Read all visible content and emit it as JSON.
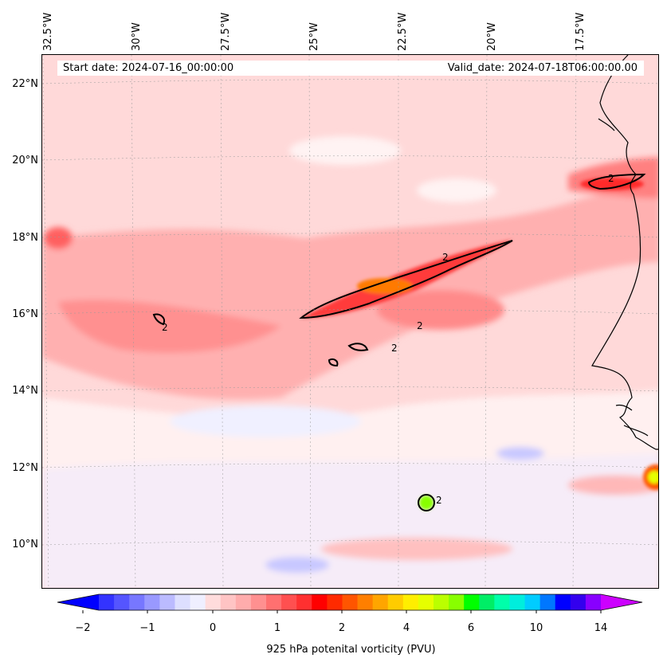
{
  "map": {
    "start_date": "Start date: 2024-07-16_00:00:00",
    "valid_date": "Valid_date: 2024-07-18T06:00:00.00",
    "lon_labels": [
      "32.5°W",
      "30°W",
      "27.5°W",
      "25°W",
      "22.5°W",
      "20°W",
      "17.5°W"
    ],
    "lat_labels": [
      "22°N",
      "20°N",
      "18°N",
      "16°N",
      "14°N",
      "12°N",
      "10°N"
    ],
    "contour_labels": [
      "2",
      "2",
      "2",
      "2",
      "2",
      "2"
    ],
    "region": "Eastern tropical Atlantic / West African coast",
    "lon_range": [
      -33,
      -15.2
    ],
    "lat_range": [
      8.9,
      22.8
    ],
    "contour_level_pvu": 2,
    "colors": {
      "background_field": "#ffd6d6",
      "coast": "#000000",
      "contour": "#000000"
    }
  },
  "colorbar": {
    "label": "925 hPa potenital vorticity (PVU)",
    "tick_labels": [
      "−2",
      "−1",
      "0",
      "1",
      "2",
      "4",
      "6",
      "10",
      "14"
    ],
    "colors": [
      "#0000ff",
      "#3333ff",
      "#5555ff",
      "#7777ff",
      "#9999ff",
      "#bbbbff",
      "#dddfff",
      "#efefff",
      "#ffdcdc",
      "#ffc4c4",
      "#ffacac",
      "#ff9090",
      "#ff7070",
      "#ff5050",
      "#ff3030",
      "#ff0000",
      "#ff2a00",
      "#ff5500",
      "#ff7f00",
      "#ffa500",
      "#ffcc00",
      "#ffee00",
      "#e6ff00",
      "#bbff00",
      "#88ff00",
      "#00ff00",
      "#00ee66",
      "#00ffaa",
      "#00eedd",
      "#00ccff",
      "#0077ff",
      "#0000ff",
      "#3300ee",
      "#8800ff",
      "#cc00ff"
    ]
  }
}
